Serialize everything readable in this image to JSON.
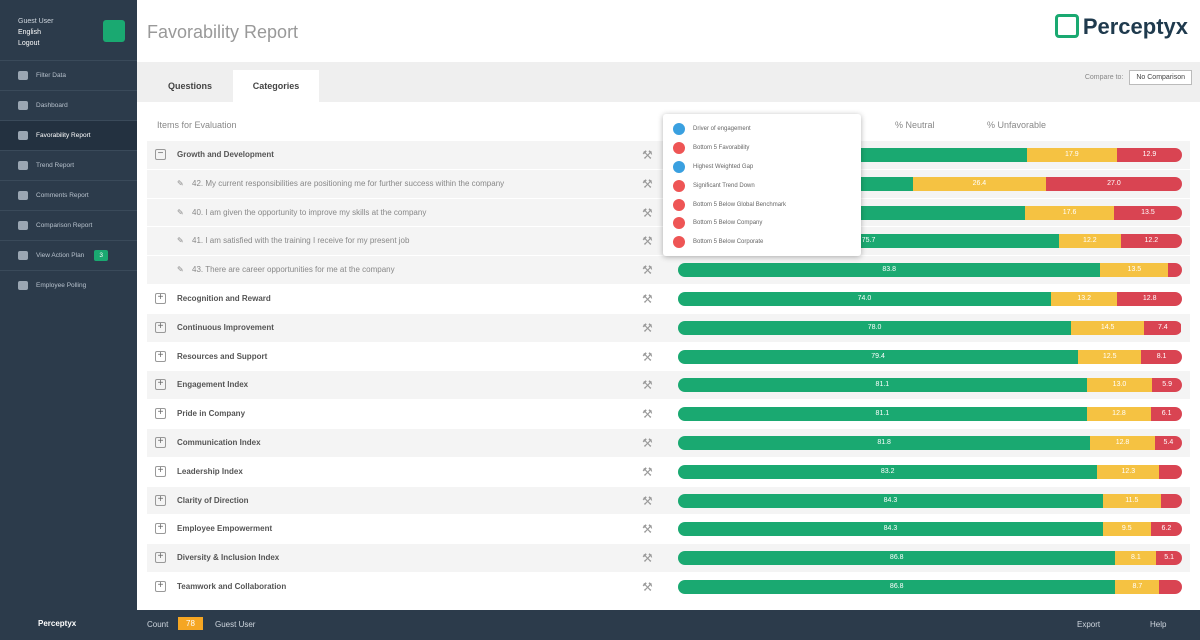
{
  "sidebar": {
    "user": "Guest User",
    "language": "English",
    "logout": "Logout",
    "nav": [
      {
        "label": "Filter Data"
      },
      {
        "label": "Dashboard"
      },
      {
        "label": "Favorability Report",
        "active": true
      },
      {
        "label": "Trend Report"
      },
      {
        "label": "Comments Report"
      },
      {
        "label": "Comparison Report"
      },
      {
        "label": "View Action Plan",
        "badge": "3"
      },
      {
        "label": "Employee Polling"
      }
    ],
    "footer_logo": "Perceptyx"
  },
  "header": {
    "title": "Favorability Report",
    "logo": "Perceptyx"
  },
  "tabs": [
    "Questions",
    "Categories"
  ],
  "compare": {
    "label": "Compare to:",
    "value": "No Comparison"
  },
  "columns": {
    "items": "Items for Evaluation",
    "neutral": "% Neutral",
    "unfavorable": "% Unfavorable"
  },
  "popup": [
    "Driver of engagement",
    "Bottom 5 Favorability",
    "Highest Weighted Gap",
    "Significant Trend Down",
    "Bottom 5 Below Global Benchmark",
    "Bottom 5 Below Company",
    "Bottom 5 Below Corporate"
  ],
  "rows": [
    {
      "kind": "category",
      "expanded": true,
      "label": "Growth and Development",
      "favorable": 69.2,
      "neutral": 17.9,
      "unfavorable": 12.9
    },
    {
      "kind": "question",
      "label": "42. My current responsibilities are positioning me for further success within the company",
      "favorable": 46.6,
      "neutral": 26.4,
      "unfavorable": 27.0,
      "value_labels": {
        "unfavorable": "27.0"
      }
    },
    {
      "kind": "question",
      "label": "40. I am given the opportunity to improve my skills at the company",
      "favorable": 68.9,
      "neutral": 17.6,
      "unfavorable": 13.5
    },
    {
      "kind": "question",
      "label": "41. I am satisfied with the training I receive for my present job",
      "favorable": 75.7,
      "neutral": 12.2,
      "unfavorable": 12.2
    },
    {
      "kind": "question",
      "label": "43. There are career opportunities for me at the company",
      "favorable": 83.8,
      "neutral": 13.5,
      "unfavorable": 2.7
    },
    {
      "kind": "category",
      "label": "Recognition and Reward",
      "favorable": 74.0,
      "neutral": 13.2,
      "unfavorable": 12.8,
      "value_labels": {
        "favorable": "74.0"
      }
    },
    {
      "kind": "category",
      "label": "Continuous Improvement",
      "favorable": 78.0,
      "neutral": 14.5,
      "unfavorable": 7.4,
      "value_labels": {
        "favorable": "78.0"
      }
    },
    {
      "kind": "category",
      "label": "Resources and Support",
      "favorable": 79.4,
      "neutral": 12.5,
      "unfavorable": 8.1
    },
    {
      "kind": "category",
      "label": "Engagement Index",
      "favorable": 81.1,
      "neutral": 13.0,
      "unfavorable": 5.9,
      "value_labels": {
        "neutral": "13.0"
      }
    },
    {
      "kind": "category",
      "label": "Pride in Company",
      "favorable": 81.1,
      "neutral": 12.8,
      "unfavorable": 6.1
    },
    {
      "kind": "category",
      "label": "Communication Index",
      "favorable": 81.8,
      "neutral": 12.8,
      "unfavorable": 5.4
    },
    {
      "kind": "category",
      "label": "Leadership Index",
      "favorable": 83.2,
      "neutral": 12.3,
      "unfavorable": 4.5
    },
    {
      "kind": "category",
      "label": "Clarity of Direction",
      "favorable": 84.3,
      "neutral": 11.5,
      "unfavorable": 4.2
    },
    {
      "kind": "category",
      "label": "Employee Empowerment",
      "favorable": 84.3,
      "neutral": 9.5,
      "unfavorable": 6.2
    },
    {
      "kind": "category",
      "label": "Diversity & Inclusion Index",
      "favorable": 86.8,
      "neutral": 8.1,
      "unfavorable": 5.1
    },
    {
      "kind": "category",
      "label": "Teamwork and Collaboration",
      "favorable": 86.8,
      "neutral": 8.7,
      "unfavorable": 4.5
    }
  ],
  "footer": {
    "count_label": "Count",
    "count": "78",
    "user": "Guest User",
    "export": "Export",
    "help": "Help"
  }
}
